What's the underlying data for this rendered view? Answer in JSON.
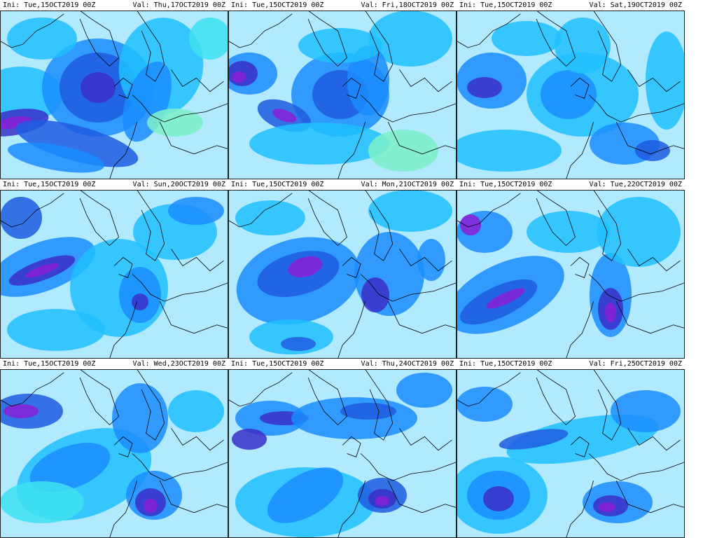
{
  "colors": {
    "background": "#ffffff",
    "scale": [
      "#ffffff",
      "#7cf0c8",
      "#3ee0f0",
      "#20c0ff",
      "#1a8cff",
      "#1f5ce0",
      "#3a2fc8",
      "#8a1fd6",
      "#e01fd0"
    ],
    "coast": "#000000",
    "border": "#202020"
  },
  "panels": [
    {
      "ini": "Ini: Tue,15OCT2019 00Z",
      "val": "Val: Thu,17OCT2019 00Z"
    },
    {
      "ini": "Ini: Tue,15OCT2019 00Z",
      "val": "Val: Fri,18OCT2019 00Z"
    },
    {
      "ini": "Ini: Tue,15OCT2019 00Z",
      "val": "Val: Sat,19OCT2019 00Z"
    },
    {
      "ini": "Ini: Tue,15OCT2019 00Z",
      "val": "Val: Sun,20OCT2019 00Z"
    },
    {
      "ini": "Ini: Tue,15OCT2019 00Z",
      "val": "Val: Mon,21OCT2019 00Z"
    },
    {
      "ini": "Ini: Tue,15OCT2019 00Z",
      "val": "Val: Tue,22OCT2019 00Z"
    },
    {
      "ini": "Ini: Tue,15OCT2019 00Z",
      "val": "Val: Wed,23OCT2019 00Z"
    },
    {
      "ini": "Ini: Tue,15OCT2019 00Z",
      "val": "Val: Thu,24OCT2019 00Z"
    },
    {
      "ini": "Ini: Tue,15OCT2019 00Z",
      "val": "Val: Fri,25OCT2019 00Z"
    }
  ]
}
